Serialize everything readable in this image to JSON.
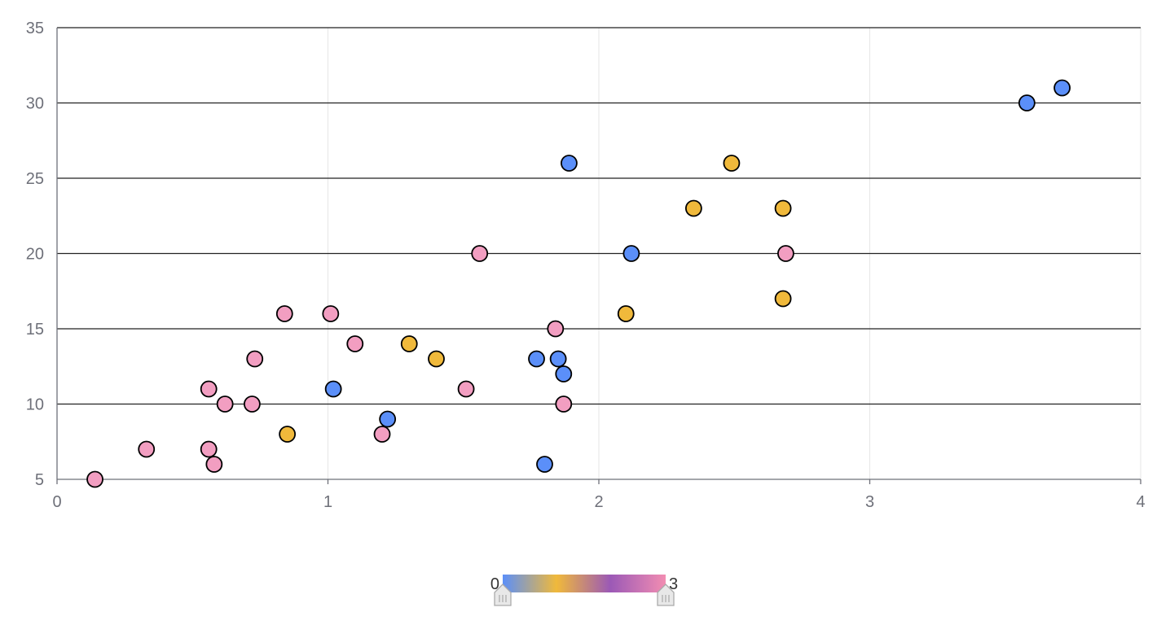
{
  "chart_data": {
    "type": "scatter",
    "title": "",
    "xlabel": "",
    "ylabel": "",
    "xlim": [
      0,
      4
    ],
    "ylim": [
      5,
      35
    ],
    "x_ticks": [
      "0",
      "1",
      "2",
      "3",
      "4"
    ],
    "y_ticks": [
      "5",
      "10",
      "15",
      "20",
      "25",
      "30",
      "35"
    ],
    "grid": true,
    "visual_map": {
      "min": 0,
      "max": 3,
      "min_label": "0",
      "max_label": "3",
      "colors": [
        "#5b8ff9",
        "#f0b93b",
        "#9b59b6",
        "#f28db2"
      ]
    },
    "category_colors": {
      "0": "#5b8ff9",
      "1": "#f0b93b",
      "3": "#f29ec1"
    },
    "points": [
      {
        "x": 0.14,
        "y": 5,
        "category": 3
      },
      {
        "x": 0.33,
        "y": 7,
        "category": 3
      },
      {
        "x": 0.56,
        "y": 7,
        "category": 3
      },
      {
        "x": 0.58,
        "y": 6,
        "category": 3
      },
      {
        "x": 0.56,
        "y": 11,
        "category": 3
      },
      {
        "x": 0.62,
        "y": 10,
        "category": 3
      },
      {
        "x": 0.72,
        "y": 10,
        "category": 3
      },
      {
        "x": 0.73,
        "y": 13,
        "category": 3
      },
      {
        "x": 0.84,
        "y": 16,
        "category": 3
      },
      {
        "x": 0.85,
        "y": 8,
        "category": 1
      },
      {
        "x": 1.01,
        "y": 16,
        "category": 3
      },
      {
        "x": 1.02,
        "y": 11,
        "category": 0
      },
      {
        "x": 1.1,
        "y": 14,
        "category": 3
      },
      {
        "x": 1.2,
        "y": 8,
        "category": 3
      },
      {
        "x": 1.22,
        "y": 9,
        "category": 0
      },
      {
        "x": 1.3,
        "y": 14,
        "category": 1
      },
      {
        "x": 1.4,
        "y": 13,
        "category": 1
      },
      {
        "x": 1.51,
        "y": 11,
        "category": 3
      },
      {
        "x": 1.56,
        "y": 20,
        "category": 3
      },
      {
        "x": 1.77,
        "y": 13,
        "category": 0
      },
      {
        "x": 1.8,
        "y": 6,
        "category": 0
      },
      {
        "x": 1.84,
        "y": 15,
        "category": 3
      },
      {
        "x": 1.85,
        "y": 13,
        "category": 0
      },
      {
        "x": 1.87,
        "y": 12,
        "category": 0
      },
      {
        "x": 1.87,
        "y": 10,
        "category": 3
      },
      {
        "x": 1.89,
        "y": 26,
        "category": 0
      },
      {
        "x": 2.1,
        "y": 16,
        "category": 1
      },
      {
        "x": 2.12,
        "y": 20,
        "category": 0
      },
      {
        "x": 2.35,
        "y": 23,
        "category": 1
      },
      {
        "x": 2.49,
        "y": 26,
        "category": 1
      },
      {
        "x": 2.68,
        "y": 23,
        "category": 1
      },
      {
        "x": 2.68,
        "y": 17,
        "category": 1
      },
      {
        "x": 2.69,
        "y": 20,
        "category": 3
      },
      {
        "x": 3.58,
        "y": 30,
        "category": 0
      },
      {
        "x": 3.71,
        "y": 31,
        "category": 0
      }
    ]
  }
}
